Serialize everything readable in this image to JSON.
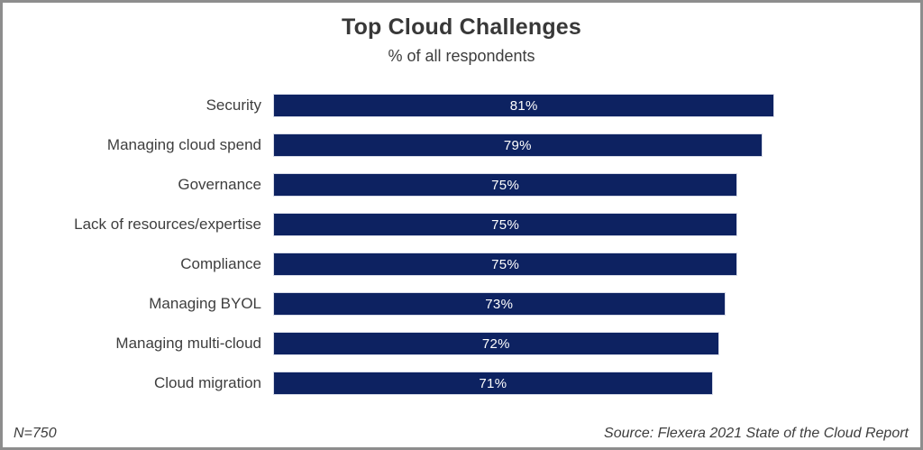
{
  "header": {
    "title": "Top Cloud Challenges",
    "subtitle": "% of all respondents"
  },
  "chart_data": {
    "type": "bar",
    "orientation": "horizontal",
    "title": "Top Cloud Challenges",
    "subtitle": "% of all respondents",
    "categories": [
      "Security",
      "Managing cloud spend",
      "Governance",
      "Lack of resources/expertise",
      "Compliance",
      "Managing BYOL",
      "Managing multi-cloud",
      "Cloud migration"
    ],
    "values": [
      81,
      79,
      75,
      75,
      75,
      73,
      72,
      71
    ],
    "value_labels": [
      "81%",
      "79%",
      "75%",
      "75%",
      "75%",
      "73%",
      "72%",
      "71%"
    ],
    "xlabel": "",
    "ylabel": "",
    "xlim": [
      0,
      100
    ],
    "grid": false,
    "legend": false,
    "data_labels_position": "inside-center",
    "bar_color": "#0d2261",
    "bar_border_color": "#d7dbe8",
    "data_label_color": "#ffffff",
    "category_label_color": "#3e3e3e"
  },
  "footer": {
    "sample_size": "N=750",
    "source": "Source: Flexera 2021 State of the Cloud Report"
  }
}
